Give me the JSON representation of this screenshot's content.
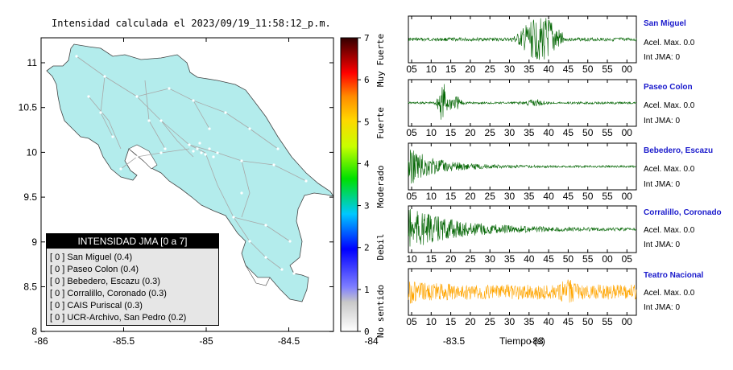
{
  "title": "Intensidad calculada el 2023/09/19_11:58:12_p.m.",
  "map": {
    "lon_ticks": [
      "-86",
      "-85.5",
      "-85",
      "-84.5",
      "-84",
      "-83.5",
      "-83"
    ],
    "lat_ticks": [
      "11",
      "10.5",
      "10",
      "9.5",
      "9",
      "8.5",
      "8"
    ],
    "land_color": "#b3ecec",
    "road_color": "#a8a8a8"
  },
  "colorbar": {
    "ticks": [
      "0",
      "1",
      "2",
      "3",
      "4",
      "5",
      "6",
      "7"
    ],
    "labels": [
      "No sentido",
      "Debil",
      "Moderado",
      "Fuerte",
      "Muy Fuerte"
    ]
  },
  "legend": {
    "title": "INTENSIDAD JMA [0 a 7]",
    "items": [
      "[ 0 ] San Miguel (0.4)",
      "[ 0 ] Paseo Colon (0.4)",
      "[ 0 ] Bebedero, Escazu (0.3)",
      "[ 0 ] Corralillo, Coronado (0.3)",
      "[ 0 ] CAIS Puriscal (0.3)",
      "[ 0 ] UCR-Archivo, San Pedro (0.2)"
    ]
  },
  "stations": [
    {
      "name": "San Miguel",
      "accel": "Acel. Max. 0.0",
      "jma": "Int JMA: 0",
      "color": "#006400",
      "ticks": [
        "05",
        "10",
        "15",
        "20",
        "25",
        "30",
        "35",
        "40",
        "45",
        "50",
        "55",
        "00"
      ]
    },
    {
      "name": "Paseo Colon",
      "accel": "Acel. Max. 0.0",
      "jma": "Int JMA: 0",
      "color": "#006400",
      "ticks": [
        "05",
        "10",
        "15",
        "20",
        "25",
        "30",
        "35",
        "40",
        "45",
        "50",
        "55",
        "00"
      ]
    },
    {
      "name": "Bebedero, Escazu",
      "accel": "Acel. Max. 0.0",
      "jma": "Int JMA: 0",
      "color": "#006400",
      "ticks": [
        "05",
        "10",
        "15",
        "20",
        "25",
        "30",
        "35",
        "40",
        "45",
        "50",
        "55",
        "00"
      ]
    },
    {
      "name": "Corralillo, Coronado",
      "accel": "Acel. Max. 0.0",
      "jma": "Int JMA: 0",
      "color": "#006400",
      "ticks": [
        "10",
        "15",
        "20",
        "25",
        "30",
        "35",
        "40",
        "45",
        "50",
        "55",
        "00",
        "05"
      ]
    },
    {
      "name": "Teatro Nacional",
      "accel": "Acel. Max. 0.0",
      "jma": "Int JMA: 0",
      "color": "#ffa500",
      "ticks": [
        "05",
        "10",
        "15",
        "20",
        "25",
        "30",
        "35",
        "40",
        "45",
        "50",
        "55",
        "00"
      ]
    }
  ],
  "waveform_xlabel": "Tiempo (s)"
}
